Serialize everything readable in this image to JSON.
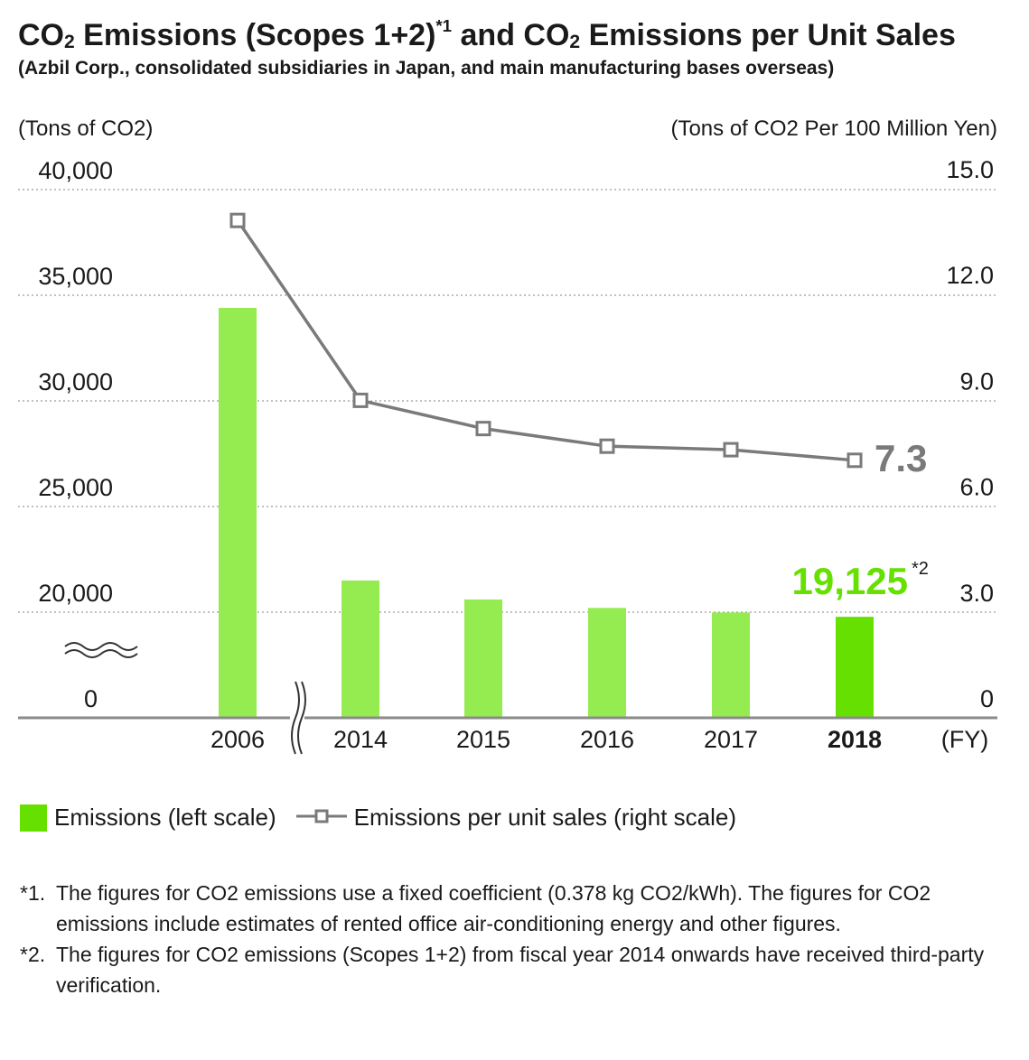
{
  "title_parts": {
    "a": "CO",
    "b": "2",
    "c": " Emissions (Scopes 1+2)",
    "d": "*1",
    "e": " and CO",
    "f": "2",
    "g": " Emissions per Unit Sales"
  },
  "subtitle": "(Azbil Corp., consolidated subsidiaries in Japan, and main manufacturing bases overseas)",
  "legend": {
    "bar_label": "Emissions (left scale)",
    "line_label": "Emissions per unit sales (right scale)"
  },
  "footnotes": [
    {
      "mark": "*1.",
      "text": "The figures for CO2 emissions use a fixed coefficient (0.378 kg CO2/kWh). The figures for CO2 emissions include estimates of rented office air-conditioning energy and other figures."
    },
    {
      "mark": "*2.",
      "text": "The figures for CO2 emissions (Scopes 1+2) from fiscal year 2014 onwards have received third-party verification."
    }
  ],
  "colors": {
    "bar": "#95ec50",
    "bar_highlight": "#66e000",
    "line": "#7a7a7a",
    "highlight_text": "#66e000",
    "line_label": "#7a7a7a"
  },
  "chart_data": {
    "type": "bar+line",
    "categories": [
      "2006",
      "2014",
      "2015",
      "2016",
      "2017",
      "2018"
    ],
    "x_unit_label": "(FY)",
    "series": [
      {
        "name": "Emissions (left scale)",
        "axis": "left",
        "type": "bar",
        "values": [
          34400,
          21500,
          20600,
          20200,
          19950,
          19125
        ]
      },
      {
        "name": "Emissions per unit sales (right scale)",
        "axis": "right",
        "type": "line",
        "values": [
          14.1,
          9.0,
          8.2,
          7.7,
          7.6,
          7.3
        ]
      }
    ],
    "left_axis": {
      "label": "(Tons of CO2)",
      "ticks": [
        "0",
        "20,000",
        "25,000",
        "30,000",
        "35,000",
        "40,000"
      ],
      "tick_values": [
        0,
        20000,
        25000,
        30000,
        35000,
        40000
      ],
      "broken_range": [
        0,
        20000
      ]
    },
    "right_axis": {
      "label": "(Tons of CO2 Per 100 Million Yen)",
      "ticks": [
        "0",
        "3.0",
        "6.0",
        "9.0",
        "12.0",
        "15.0"
      ],
      "tick_values": [
        0,
        3,
        6,
        9,
        12,
        15
      ]
    },
    "annotations": {
      "last_bar_label": "19,125",
      "last_bar_note": "*2",
      "last_line_label": "7.3"
    },
    "highlight_category": "2018"
  }
}
